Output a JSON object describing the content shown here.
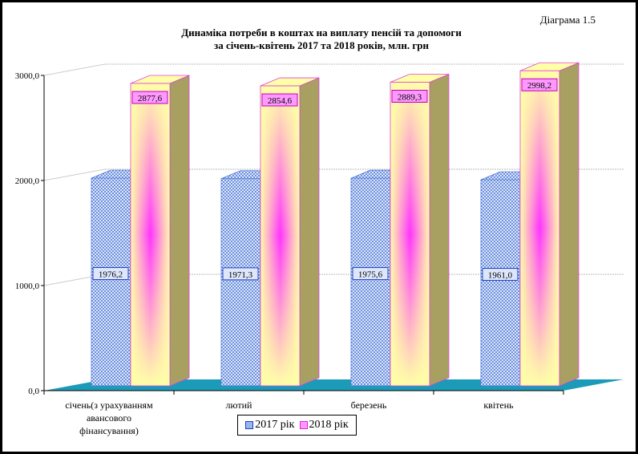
{
  "diagram_label": "Діаграма 1.5",
  "chart_data": {
    "type": "bar",
    "title": "Динаміка потреби в коштах на виплату пенсій та допомоги за січень-квітень 2017 та 2018 років, млн. грн",
    "title_lines": [
      "Динаміка потреби в коштах на виплату пенсій та допомоги",
      "за січень-квітень 2017 та 2018 років, млн. грн"
    ],
    "categories": [
      [
        "січень(з урахуванням",
        "авансового",
        "фінансування)"
      ],
      [
        "лютий"
      ],
      [
        "березень"
      ],
      [
        "квітень"
      ]
    ],
    "series": [
      {
        "name": "2017 рік",
        "values": [
          1976.2,
          1971.3,
          1975.6,
          1961.0
        ],
        "labels": [
          "1976,2",
          "1971,3",
          "1975,6",
          "1961,0"
        ],
        "color": "#4f7bd9"
      },
      {
        "name": "2018 рік",
        "values": [
          2877.6,
          2854.6,
          2889.3,
          2998.2
        ],
        "labels": [
          "2877,6",
          "2854,6",
          "2889,3",
          "2998,2"
        ],
        "color": "#ff33ff"
      }
    ],
    "ylim": [
      0,
      3000
    ],
    "yticks": [
      0,
      1000,
      2000,
      3000
    ],
    "ytick_labels": [
      "0,0",
      "1000,0",
      "2000,0",
      "3000,0"
    ],
    "grid": true,
    "legend": "bottom",
    "style": "3d"
  }
}
